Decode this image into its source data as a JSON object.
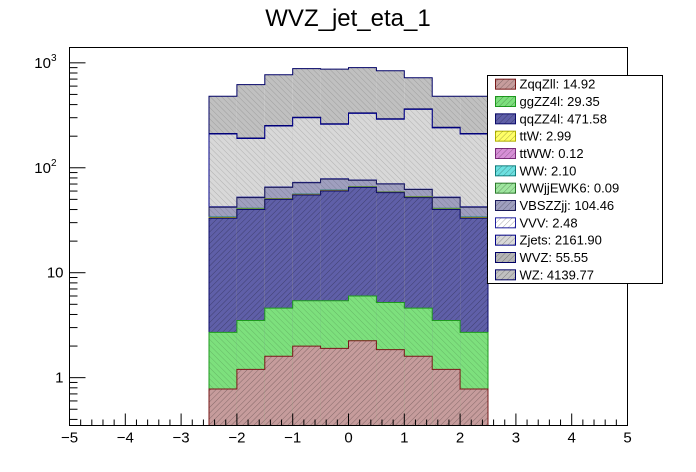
{
  "chart_data": {
    "type": "bar",
    "stacked": true,
    "title": "WVZ_jet_eta_1",
    "xlabel": "",
    "ylabel": "",
    "xlim": [
      -5,
      5
    ],
    "ylim": [
      0.35,
      1400
    ],
    "y_scale": "log",
    "x_ticks": [
      "−5",
      "−4",
      "−3",
      "−2",
      "−1",
      "0",
      "1",
      "2",
      "3",
      "4",
      "5"
    ],
    "y_ticks": [
      {
        "base": "1",
        "exp": "",
        "value": 1
      },
      {
        "base": "10",
        "exp": "",
        "value": 10
      },
      {
        "base": "10",
        "exp": "2",
        "value": 100
      },
      {
        "base": "10",
        "exp": "3",
        "value": 1000
      }
    ],
    "bin_edges": [
      -2.5,
      -2.0,
      -1.5,
      -1.0,
      -0.5,
      0.0,
      0.5,
      1.0,
      1.5,
      2.0,
      2.5
    ],
    "cumulative_series": [
      {
        "name": "ZqqZll",
        "legend_label": "ZqqZll: 14.92",
        "fill": "#c69c9c",
        "line": "#7a1818",
        "values": [
          0.78,
          1.2,
          1.6,
          2.0,
          1.9,
          2.25,
          1.85,
          1.6,
          1.2,
          0.78
        ]
      },
      {
        "name": "ggZZ4l",
        "legend_label": "ggZZ4l: 29.35",
        "fill": "#7de07d",
        "line": "#1e9a1e",
        "values": [
          2.7,
          3.5,
          4.6,
          5.4,
          5.4,
          6.0,
          5.2,
          4.6,
          3.5,
          2.7
        ]
      },
      {
        "name": "qqZZ4l",
        "legend_label": "qqZZ4l: 471.58",
        "fill": "#5f5fa8",
        "line": "#0b0b6b",
        "values": [
          33,
          40,
          50,
          55,
          60,
          65,
          58,
          52,
          40,
          33
        ]
      },
      {
        "name": "ttW",
        "legend_label": "ttW: 2.99",
        "fill": "#ffff66",
        "line": "#b0b000",
        "values": [
          33.5,
          40.5,
          50.5,
          55.5,
          60.5,
          65.5,
          58.5,
          52.5,
          40.5,
          33.5
        ]
      },
      {
        "name": "ttWW",
        "legend_label": "ttWW: 0.12",
        "fill": "#d68fd6",
        "line": "#7a2a7a",
        "values": [
          33.5,
          40.5,
          50.5,
          55.5,
          60.5,
          65.5,
          58.5,
          52.5,
          40.5,
          33.5
        ]
      },
      {
        "name": "WW",
        "legend_label": "WW: 2.10",
        "fill": "#6ce0e0",
        "line": "#108080",
        "values": [
          34,
          41,
          51,
          56,
          61,
          66,
          59,
          53,
          41,
          34
        ]
      },
      {
        "name": "WWjjEWK6",
        "legend_label": "WWjjEWK6: 0.09",
        "fill": "#9ee69e",
        "line": "#2a7a2a",
        "values": [
          34,
          41,
          51,
          56,
          61,
          66,
          59,
          53,
          41,
          34
        ]
      },
      {
        "name": "VBSZZjj",
        "legend_label": "VBSZZjj: 104.46",
        "fill": "#9f9fbf",
        "line": "#1a1a5a",
        "values": [
          42,
          52,
          65,
          72,
          78,
          76,
          70,
          62,
          52,
          42
        ]
      },
      {
        "name": "VVV",
        "legend_label": "VVV: 2.48",
        "fill": "#ffffff",
        "line": "#2020a0",
        "values": [
          42.5,
          52.5,
          65.5,
          72.5,
          78.5,
          76.5,
          70.5,
          62.5,
          52.5,
          42.5
        ]
      },
      {
        "name": "Zjets",
        "legend_label": "Zjets: 2161.90",
        "fill": "#d8d8d8",
        "line": "#000088",
        "values": [
          210,
          190,
          250,
          300,
          260,
          330,
          290,
          360,
          240,
          210
        ]
      },
      {
        "name": "WVZ",
        "legend_label": "WVZ: 55.55",
        "fill": "#b4b4b4",
        "line": "#000066",
        "values": [
          212,
          192,
          253,
          303,
          263,
          334,
          293,
          364,
          243,
          212
        ]
      },
      {
        "name": "WZ",
        "legend_label": "WZ: 4139.77",
        "fill": "#c0c0c0",
        "line": "#000066",
        "values": [
          480,
          620,
          770,
          880,
          870,
          900,
          840,
          720,
          480,
          480
        ]
      }
    ]
  }
}
